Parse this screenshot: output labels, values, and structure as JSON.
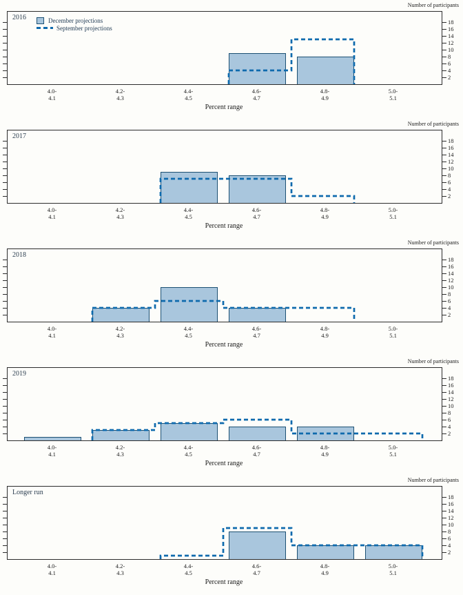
{
  "y_axis_label": "Number of participants",
  "x_axis_label": "Percent range",
  "y_ticks": [
    18,
    16,
    14,
    12,
    10,
    8,
    6,
    4,
    2
  ],
  "x_categories": [
    {
      "line1": "4.0-",
      "line2": "4.1"
    },
    {
      "line1": "4.2-",
      "line2": "4.3"
    },
    {
      "line1": "4.4-",
      "line2": "4.5"
    },
    {
      "line1": "4.6-",
      "line2": "4.7"
    },
    {
      "line1": "4.8-",
      "line2": "4.9"
    },
    {
      "line1": "5.0-",
      "line2": "5.1"
    }
  ],
  "legend": [
    {
      "label": "December projections",
      "marker": "bar-swatch"
    },
    {
      "label": "September projections",
      "marker": "dashed-line"
    }
  ],
  "colors": {
    "bar_fill": "#a9c6dd",
    "bar_border": "#1b4f72",
    "dashed_line": "#0e6aad",
    "axis": "#2b2b2b",
    "text": "#1a1a1a",
    "accent_text": "#223c55",
    "background": "#fdfdfa"
  },
  "chart_data": [
    {
      "type": "bar",
      "title": "2016",
      "categories": [
        "4.0-4.1",
        "4.2-4.3",
        "4.4-4.5",
        "4.6-4.7",
        "4.8-4.9",
        "5.0-5.1"
      ],
      "series": [
        {
          "name": "December projections",
          "style": "bars",
          "values": [
            0,
            0,
            0,
            9,
            8,
            0
          ]
        },
        {
          "name": "September projections",
          "style": "dashed-step",
          "values": [
            0,
            0,
            0,
            4,
            13,
            0
          ]
        }
      ],
      "xlabel": "Percent range",
      "ylabel": "Number of participants",
      "ylim": [
        0,
        21
      ],
      "y_tick_step": 2,
      "grid": false,
      "legend_position": "top-left-first-panel-only"
    },
    {
      "type": "bar",
      "title": "2017",
      "categories": [
        "4.0-4.1",
        "4.2-4.3",
        "4.4-4.5",
        "4.6-4.7",
        "4.8-4.9",
        "5.0-5.1"
      ],
      "series": [
        {
          "name": "December projections",
          "style": "bars",
          "values": [
            0,
            0,
            9,
            8,
            0,
            0
          ]
        },
        {
          "name": "September projections",
          "style": "dashed-step",
          "values": [
            0,
            0,
            7,
            7,
            2,
            0
          ]
        }
      ],
      "xlabel": "Percent range",
      "ylabel": "Number of participants",
      "ylim": [
        0,
        21
      ],
      "y_tick_step": 2,
      "grid": false
    },
    {
      "type": "bar",
      "title": "2018",
      "categories": [
        "4.0-4.1",
        "4.2-4.3",
        "4.4-4.5",
        "4.6-4.7",
        "4.8-4.9",
        "5.0-5.1"
      ],
      "series": [
        {
          "name": "December projections",
          "style": "bars",
          "values": [
            0,
            4,
            10,
            4,
            0,
            0
          ]
        },
        {
          "name": "September projections",
          "style": "dashed-step",
          "values": [
            0,
            4,
            6,
            4,
            4,
            0
          ]
        }
      ],
      "xlabel": "Percent range",
      "ylabel": "Number of participants",
      "ylim": [
        0,
        21
      ],
      "y_tick_step": 2,
      "grid": false
    },
    {
      "type": "bar",
      "title": "2019",
      "categories": [
        "4.0-4.1",
        "4.2-4.3",
        "4.4-4.5",
        "4.6-4.7",
        "4.8-4.9",
        "5.0-5.1"
      ],
      "series": [
        {
          "name": "December projections",
          "style": "bars",
          "values": [
            1,
            3,
            5,
            4,
            4,
            0
          ]
        },
        {
          "name": "September projections",
          "style": "dashed-step",
          "values": [
            0,
            3,
            5,
            6,
            2,
            2
          ]
        }
      ],
      "xlabel": "Percent range",
      "ylabel": "Number of participants",
      "ylim": [
        0,
        21
      ],
      "y_tick_step": 2,
      "grid": false
    },
    {
      "type": "bar",
      "title": "Longer run",
      "categories": [
        "4.0-4.1",
        "4.2-4.3",
        "4.4-4.5",
        "4.6-4.7",
        "4.8-4.9",
        "5.0-5.1"
      ],
      "series": [
        {
          "name": "December projections",
          "style": "bars",
          "values": [
            0,
            0,
            0,
            8,
            4,
            4
          ]
        },
        {
          "name": "September projections",
          "style": "dashed-step",
          "values": [
            0,
            0,
            1,
            9,
            4,
            4
          ]
        }
      ],
      "xlabel": "Percent range",
      "ylabel": "Number of participants",
      "ylim": [
        0,
        21
      ],
      "y_tick_step": 2,
      "grid": false
    }
  ]
}
